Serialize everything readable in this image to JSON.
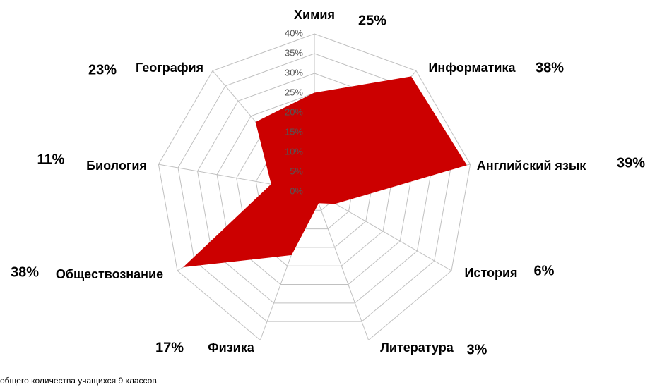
{
  "chart_data": {
    "type": "radar",
    "categories": [
      "Химия",
      "Информатика",
      "Английский язык",
      "История",
      "Литература",
      "Физика",
      "Обществознание",
      "Биология",
      "География"
    ],
    "values": [
      25,
      38,
      39,
      6,
      3,
      17,
      38,
      11,
      23
    ],
    "value_labels": [
      "25%",
      "38%",
      "39%",
      "6%",
      "3%",
      "17%",
      "38%",
      "11%",
      "23%"
    ],
    "color": "#cc0000",
    "ylim": [
      0,
      40
    ],
    "yticks": [
      {
        "value": 0,
        "label": "0%"
      },
      {
        "value": 5,
        "label": "5%"
      },
      {
        "value": 10,
        "label": "10%"
      },
      {
        "value": 15,
        "label": "15%"
      },
      {
        "value": 20,
        "label": "20%"
      },
      {
        "value": 25,
        "label": "25%"
      },
      {
        "value": 30,
        "label": "30%"
      },
      {
        "value": 35,
        "label": "35%"
      },
      {
        "value": 40,
        "label": "40%"
      }
    ],
    "grid": true,
    "note": "общего количества учащихся 9 классов"
  }
}
